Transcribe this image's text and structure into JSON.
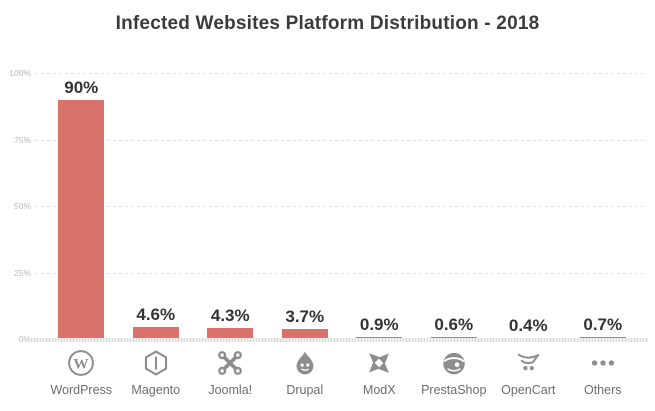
{
  "chart_data": {
    "type": "bar",
    "title": "Infected Websites Platform Distribution - 2018",
    "categories": [
      "WordPress",
      "Magento",
      "Joomla!",
      "Drupal",
      "ModX",
      "PrestaShop",
      "OpenCart",
      "Others"
    ],
    "values": [
      90,
      4.6,
      4.3,
      3.7,
      0.9,
      0.6,
      0.4,
      0.7
    ],
    "value_labels": [
      "90%",
      "4.6%",
      "4.3%",
      "3.7%",
      "0.9%",
      "0.6%",
      "0.4%",
      "0.7%"
    ],
    "yticks": [
      100,
      75,
      50,
      25,
      0
    ],
    "ytick_labels": [
      "100%",
      "75%",
      "50%",
      "25%",
      "0%"
    ],
    "ylim": [
      0,
      100
    ],
    "xlabel": "",
    "ylabel": "",
    "grid": "horizontal-dashed",
    "legend": "none",
    "bar_color": "#d9726a",
    "icons": [
      "wordpress-icon",
      "magento-icon",
      "joomla-icon",
      "drupal-icon",
      "modx-icon",
      "prestashop-icon",
      "opencart-icon",
      "others-icon"
    ]
  },
  "colors": {
    "bar": "#d9726a",
    "title_text": "#3b3b3b",
    "value_text": "#333333",
    "ytick_text": "#b9b9b9",
    "category_text": "#6d6d6d",
    "icon": "#8d8d8d",
    "gridline": "#e3e3e3",
    "baseline": "#dcdcdc",
    "background": "#ffffff"
  }
}
